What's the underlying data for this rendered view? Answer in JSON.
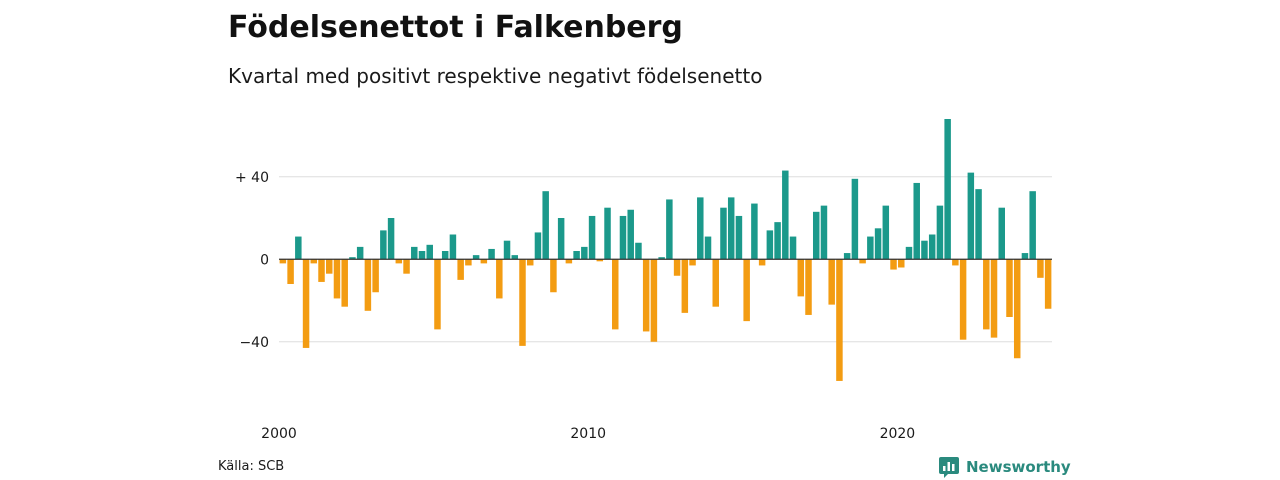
{
  "colors": {
    "positive": "#1b998b",
    "negative": "#f39c12",
    "grid": "#dddddd",
    "zero_line": "#333333",
    "brand": "#2a8a7e"
  },
  "footer": {
    "source": "Källa: SCB",
    "brand": "Newsworthy",
    "brand_icon": "newsworthy-logo-icon"
  },
  "chart_data": {
    "type": "bar",
    "title": "Födelsenettot i Falkenberg",
    "subtitle": "Kvartal med positivt respektive negativt födelsenetto",
    "xlabel": "",
    "ylabel": "",
    "ylim": [
      -60,
      68
    ],
    "grid": true,
    "legend": "none",
    "y_ticks": [
      {
        "value": 40,
        "label": "+ 40"
      },
      {
        "value": 0,
        "label": "0"
      },
      {
        "value": -40,
        "label": "−40"
      }
    ],
    "x_ticks": [
      {
        "value": 2000,
        "label": "2000"
      },
      {
        "value": 2010,
        "label": "2010"
      },
      {
        "value": 2020,
        "label": "2020"
      }
    ],
    "start_year": 2000,
    "start_quarter": 1,
    "series": [
      {
        "values": [
          -2,
          -12,
          11,
          -43,
          -2,
          -11,
          -7,
          -19,
          -23,
          1,
          6,
          -25,
          -16,
          14,
          20,
          -2,
          -7,
          6,
          4,
          7,
          -34,
          4,
          12,
          -10,
          -3,
          2,
          -2,
          5,
          -19,
          9,
          2,
          -42,
          -3,
          13,
          33,
          -16,
          20,
          -2,
          4,
          6,
          21,
          -1,
          25,
          -34,
          21,
          24,
          8,
          -35,
          -40,
          1,
          29,
          -8,
          -26,
          -3,
          30,
          11,
          -23,
          25,
          30,
          21,
          -30,
          27,
          -3,
          14,
          18,
          43,
          11,
          -18,
          -27,
          23,
          26,
          -22,
          -59,
          3,
          39,
          -2,
          11,
          15,
          26,
          -5,
          -4,
          6,
          37,
          9,
          12,
          26,
          68,
          -3,
          -39,
          42,
          34,
          -34,
          -38,
          25,
          -28,
          -48,
          3,
          33,
          -9,
          -24
        ]
      }
    ]
  }
}
